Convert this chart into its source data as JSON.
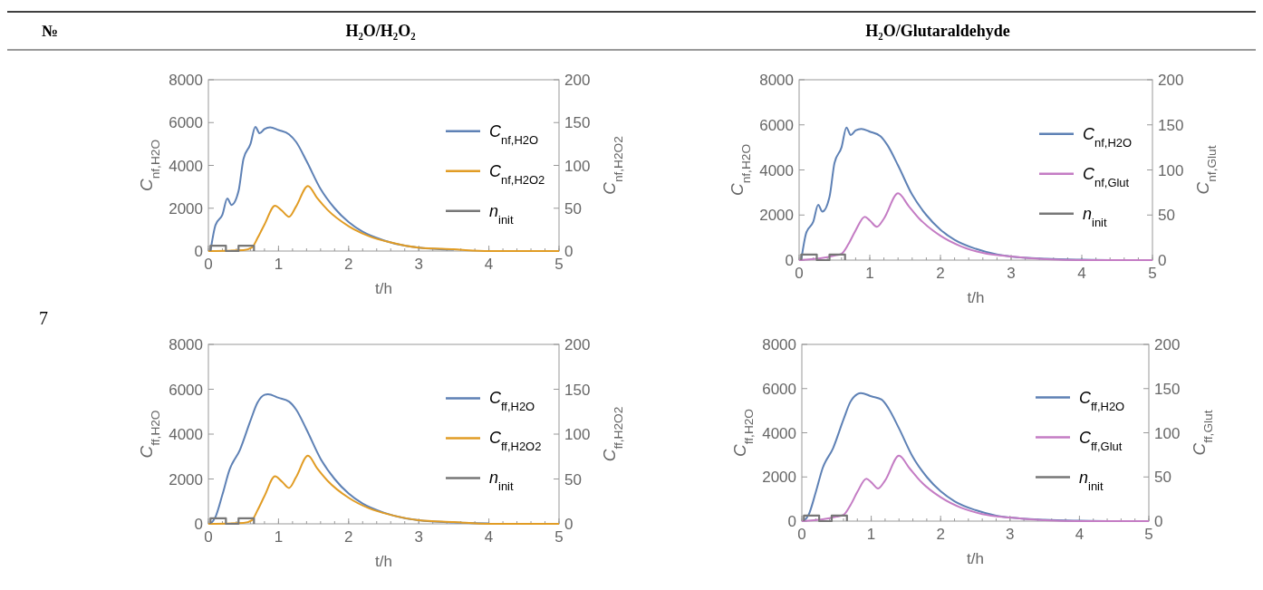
{
  "chart_data": [
    {
      "type": "other",
      "annotations": [
        "№",
        "H₂O/H₂O₂",
        "H₂O/Glutaraldehyde",
        "7"
      ]
    },
    {
      "type": "line",
      "xlabel": "t/h",
      "ylabel": "C$_{nf,H2O}$",
      "y2label": "C$_{nf,H2O2}$",
      "xlim": [
        0,
        5
      ],
      "xticks": [
        0,
        1,
        2,
        3,
        4,
        5
      ],
      "ylim": [
        0,
        8000
      ],
      "yticks": [
        0,
        2000,
        4000,
        6000,
        8000
      ],
      "y2lim": [
        0,
        200
      ],
      "y2ticks": [
        0,
        50,
        100,
        150,
        200
      ],
      "grid": false,
      "legend": "right",
      "series": [
        {
          "name": "C$_{nf,H2O}$",
          "color": "#5e81b5",
          "x": [
            0.03,
            0.1,
            0.2,
            0.27,
            0.33,
            0.43,
            0.5,
            0.6,
            0.67,
            0.73,
            0.8,
            0.88,
            1.0,
            1.15,
            1.25,
            1.4,
            1.6,
            1.8,
            2.0,
            2.2,
            2.5,
            2.8,
            3.0,
            3.5
          ],
          "values": [
            0,
            1200,
            1700,
            2450,
            2150,
            2800,
            4300,
            5000,
            5800,
            5500,
            5700,
            5780,
            5650,
            5450,
            5100,
            4200,
            2900,
            2000,
            1350,
            900,
            500,
            250,
            160,
            60
          ]
        },
        {
          "name": "C$_{nf,H2O2}$",
          "color": "#e19c24",
          "axis": "y2",
          "x": [
            0,
            0.5,
            0.62,
            0.7,
            0.8,
            0.95,
            1.05,
            1.15,
            1.25,
            1.42,
            1.55,
            1.7,
            2.0,
            2.3,
            2.6,
            3.0,
            3.5,
            4.0,
            5.0
          ],
          "values": [
            0,
            1,
            4,
            15,
            31,
            53,
            47,
            40,
            52,
            76,
            62,
            48,
            29,
            17,
            10,
            4,
            2,
            0,
            0
          ]
        },
        {
          "name": "n$_{init}$",
          "color": "#777777",
          "type": "step",
          "x": [
            0.03,
            0.03,
            0.25,
            0.43,
            0.65
          ],
          "values": [
            0,
            250,
            0,
            250,
            0
          ]
        }
      ]
    },
    {
      "type": "line",
      "xlabel": "t/h",
      "ylabel": "C$_{nf,H2O}$",
      "y2label": "C$_{nf,Glut}$",
      "xlim": [
        0,
        5
      ],
      "xticks": [
        0,
        1,
        2,
        3,
        4,
        5
      ],
      "ylim": [
        0,
        8000
      ],
      "yticks": [
        0,
        2000,
        4000,
        6000,
        8000
      ],
      "y2lim": [
        0,
        200
      ],
      "y2ticks": [
        0,
        50,
        100,
        150,
        200
      ],
      "grid": false,
      "legend": "right",
      "series": [
        {
          "name": "C$_{nf,H2O}$",
          "color": "#5e81b5",
          "x": [
            0.03,
            0.1,
            0.2,
            0.27,
            0.33,
            0.43,
            0.5,
            0.6,
            0.67,
            0.73,
            0.8,
            0.88,
            1.0,
            1.15,
            1.25,
            1.4,
            1.6,
            1.8,
            2.0,
            2.2,
            2.5,
            2.8,
            3.0,
            3.5,
            4.0,
            4.5,
            5.0
          ],
          "values": [
            0,
            1200,
            1700,
            2450,
            2150,
            2800,
            4300,
            5000,
            5880,
            5550,
            5750,
            5820,
            5700,
            5500,
            5100,
            4200,
            2900,
            2000,
            1350,
            900,
            500,
            250,
            160,
            60,
            20,
            0,
            0
          ]
        },
        {
          "name": "C$_{nf,Glut}$",
          "color": "#c47cc4",
          "axis": "y2",
          "x": [
            0,
            0.3,
            0.5,
            0.6,
            0.7,
            0.8,
            0.93,
            1.0,
            1.1,
            1.2,
            1.4,
            1.55,
            1.7,
            2.0,
            2.3,
            2.6,
            3.0,
            3.5,
            4.0,
            5.0
          ],
          "values": [
            0,
            2,
            5,
            7,
            18,
            33,
            48,
            44,
            37,
            46,
            74,
            60,
            46,
            27,
            15,
            8,
            4,
            1,
            0,
            0
          ]
        },
        {
          "name": "n$_{init}$",
          "color": "#777777",
          "type": "step",
          "x": [
            0.03,
            0.03,
            0.25,
            0.43,
            0.65
          ],
          "values": [
            0,
            250,
            0,
            250,
            0
          ]
        }
      ]
    },
    {
      "type": "line",
      "xlabel": "t/h",
      "ylabel": "C$_{ff,H2O}$",
      "y2label": "C$_{ff,H2O2}$",
      "xlim": [
        0,
        5
      ],
      "xticks": [
        0,
        1,
        2,
        3,
        4,
        5
      ],
      "ylim": [
        0,
        8000
      ],
      "yticks": [
        0,
        2000,
        4000,
        6000,
        8000
      ],
      "y2lim": [
        0,
        200
      ],
      "y2ticks": [
        0,
        50,
        100,
        150,
        200
      ],
      "grid": false,
      "legend": "right",
      "series": [
        {
          "name": "C$_{ff,H2O}$",
          "color": "#5e81b5",
          "x": [
            0.03,
            0.1,
            0.2,
            0.3,
            0.45,
            0.6,
            0.7,
            0.8,
            0.85,
            1.0,
            1.15,
            1.25,
            1.4,
            1.6,
            1.8,
            2.0,
            2.2,
            2.5,
            2.8,
            3.0,
            3.5,
            4.0
          ],
          "values": [
            0,
            300,
            1300,
            2400,
            3300,
            4600,
            5400,
            5750,
            5780,
            5620,
            5450,
            5100,
            4200,
            2900,
            2000,
            1350,
            900,
            500,
            250,
            160,
            60,
            20
          ]
        },
        {
          "name": "C$_{ff,H2O2}$",
          "color": "#e19c24",
          "axis": "y2",
          "x": [
            0,
            0.5,
            0.62,
            0.7,
            0.8,
            0.95,
            1.05,
            1.15,
            1.25,
            1.42,
            1.55,
            1.7,
            2.0,
            2.3,
            2.6,
            3.0,
            3.5,
            4.0,
            5.0
          ],
          "values": [
            0,
            1,
            4,
            15,
            31,
            53,
            47,
            40,
            52,
            76,
            62,
            48,
            29,
            17,
            10,
            4,
            2,
            0,
            0
          ]
        },
        {
          "name": "n$_{init}$",
          "color": "#777777",
          "type": "step",
          "x": [
            0.03,
            0.03,
            0.25,
            0.43,
            0.65
          ],
          "values": [
            0,
            250,
            0,
            250,
            0
          ]
        }
      ]
    },
    {
      "type": "line",
      "xlabel": "t/h",
      "ylabel": "C$_{ff,H2O}$",
      "y2label": "C$_{ff,Glut}$",
      "xlim": [
        0,
        5
      ],
      "xticks": [
        0,
        1,
        2,
        3,
        4,
        5
      ],
      "ylim": [
        0,
        8000
      ],
      "yticks": [
        0,
        2000,
        4000,
        6000,
        8000
      ],
      "y2lim": [
        0,
        200
      ],
      "y2ticks": [
        0,
        50,
        100,
        150,
        200
      ],
      "grid": false,
      "legend": "right",
      "series": [
        {
          "name": "C$_{ff,H2O}$",
          "color": "#5e81b5",
          "x": [
            0.03,
            0.1,
            0.2,
            0.3,
            0.45,
            0.6,
            0.7,
            0.8,
            0.85,
            1.0,
            1.15,
            1.25,
            1.4,
            1.6,
            1.8,
            2.0,
            2.2,
            2.5,
            2.8,
            3.0,
            3.5,
            4.0,
            4.5,
            5.0
          ],
          "values": [
            0,
            300,
            1300,
            2400,
            3300,
            4600,
            5400,
            5750,
            5800,
            5650,
            5500,
            5100,
            4200,
            2900,
            2000,
            1350,
            900,
            500,
            250,
            160,
            60,
            20,
            0,
            0
          ]
        },
        {
          "name": "C$_{ff,Glut}$",
          "color": "#c47cc4",
          "axis": "y2",
          "x": [
            0,
            0.3,
            0.5,
            0.6,
            0.7,
            0.8,
            0.93,
            1.0,
            1.1,
            1.2,
            1.4,
            1.55,
            1.7,
            2.0,
            2.3,
            2.6,
            3.0,
            3.5,
            4.0,
            5.0
          ],
          "values": [
            0,
            2,
            5,
            7,
            18,
            33,
            48,
            44,
            37,
            46,
            74,
            60,
            46,
            27,
            15,
            8,
            4,
            1,
            0,
            0
          ]
        },
        {
          "name": "n$_{init}$",
          "color": "#777777",
          "type": "step",
          "x": [
            0.03,
            0.03,
            0.25,
            0.43,
            0.65
          ],
          "values": [
            0,
            250,
            0,
            250,
            0
          ]
        }
      ]
    }
  ]
}
